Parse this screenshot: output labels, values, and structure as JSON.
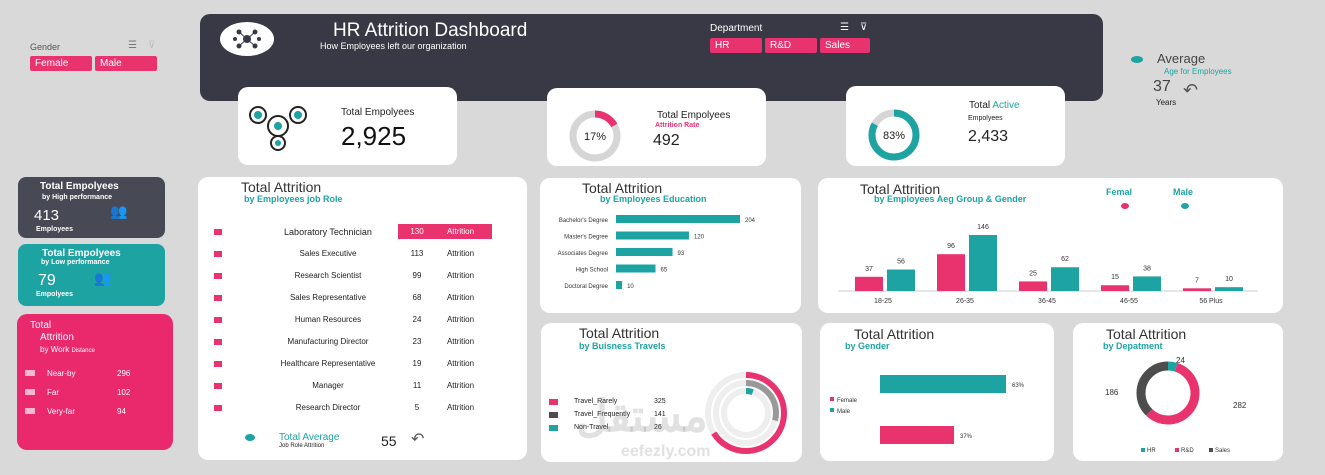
{
  "gender_slicer": {
    "label": "Gender",
    "items": [
      "Female",
      "Male"
    ]
  },
  "header": {
    "title": "HR Attrition Dashboard",
    "subtitle": "How Employees left our organization",
    "dept_label": "Department",
    "dept_items": [
      "HR",
      "R&D",
      "Sales"
    ]
  },
  "average": {
    "title": "Average",
    "subtitle": "Age for Employees",
    "value": "37",
    "unit": "Years"
  },
  "kpi": {
    "total": {
      "label": "Total Empolyees",
      "value": "2,925"
    },
    "rate": {
      "label": "Total Empolyees",
      "sublabel": "Attrition Rate",
      "pct": "17%",
      "pct_value": 17,
      "value": "492"
    },
    "active": {
      "label_a": "Total",
      "label_b": "Active",
      "sublabel": "Empolyees",
      "pct": "83%",
      "pct_value": 83,
      "value": "2,433"
    }
  },
  "high_perf": {
    "title": "Total Empolyees",
    "sub": "by High performance",
    "value": "413",
    "unit": "Employees"
  },
  "low_perf": {
    "title": "Total Empolyees",
    "sub": "by Low performance",
    "value": "79",
    "unit": "Empolyees"
  },
  "distance": {
    "title_a": "Total",
    "title_b": "Attrition",
    "sub_a": "by",
    "sub_b": "Work",
    "sub_c": "Distance",
    "rows": [
      {
        "label": "Near-by",
        "value": "296"
      },
      {
        "label": "Far",
        "value": "102"
      },
      {
        "label": "Very-far",
        "value": "94"
      }
    ]
  },
  "job_role": {
    "title": "Total Attrition",
    "sub": "by Employees job Role",
    "col_label": "Attrition",
    "rows": [
      {
        "role": "Laboratory Technician",
        "value": "130"
      },
      {
        "role": "Sales Executive",
        "value": "113"
      },
      {
        "role": "Research Scientist",
        "value": "99"
      },
      {
        "role": "Sales Representative",
        "value": "68"
      },
      {
        "role": "Human Resources",
        "value": "24"
      },
      {
        "role": "Manufacturing Director",
        "value": "23"
      },
      {
        "role": "Healthcare Representative",
        "value": "19"
      },
      {
        "role": "Manager",
        "value": "11"
      },
      {
        "role": "Research Director",
        "value": "5"
      }
    ],
    "avg_label": "Total Average",
    "avg_sub": "Job Role Attrition",
    "avg_value": "55"
  },
  "travel": {
    "title": "Total Attrition",
    "sub": "by Buisness Travels",
    "rows": [
      {
        "label": "Travel_Rarely",
        "value": "325"
      },
      {
        "label": "Travel_Frequently",
        "value": "141"
      },
      {
        "label": "Non-Travel",
        "value": "26"
      }
    ]
  },
  "watermark": "مستقل",
  "watermark2": "eefezly.com",
  "colors": {
    "pink": "#e8336f",
    "teal": "#1ea3a3",
    "dark": "#383944",
    "grey": "#4d4d4d"
  },
  "chart_data": [
    {
      "type": "bar",
      "orientation": "horizontal",
      "title": "Total Attrition",
      "subtitle": "by Employees Education",
      "categories": [
        "Bachelor's Degree",
        "Master's Degree",
        "Associates Degree",
        "High School",
        "Doctoral Degree"
      ],
      "values": [
        204,
        120,
        93,
        65,
        10
      ]
    },
    {
      "type": "bar",
      "title": "Total Attrition",
      "subtitle": "by Employees Aeg Group & Gender",
      "categories": [
        "18-25",
        "26-35",
        "36-45",
        "46-55",
        "56 Plus"
      ],
      "series": [
        {
          "name": "Femal",
          "values": [
            37,
            96,
            25,
            15,
            7
          ]
        },
        {
          "name": "Male",
          "values": [
            56,
            146,
            62,
            38,
            10
          ]
        }
      ]
    },
    {
      "type": "bar",
      "orientation": "horizontal",
      "title": "Total Attrition",
      "subtitle": "by Gender",
      "categories": [
        "Female",
        "Male"
      ],
      "values_pct": [
        37,
        63
      ],
      "labels": [
        "37%",
        "63%"
      ],
      "legend": [
        "Female",
        "Male"
      ]
    },
    {
      "type": "pie",
      "title": "Total Attrition",
      "subtitle": "by Depatment",
      "categories": [
        "HR",
        "R&D",
        "Sales"
      ],
      "values": [
        24,
        282,
        186
      ]
    }
  ]
}
